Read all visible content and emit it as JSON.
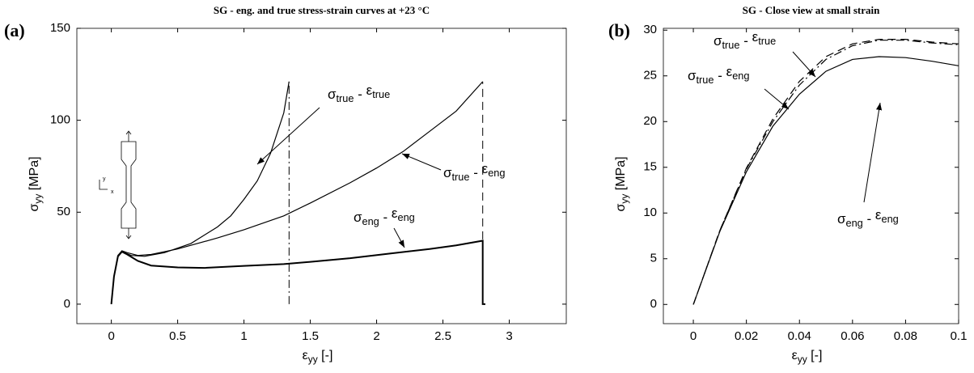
{
  "chart_data": [
    {
      "type": "line",
      "panel": "(a)",
      "title": "SG - eng. and true stress-strain curves at +23 °C",
      "x_label": "εyy [-]",
      "y_label": "σyy [MPa]",
      "xlim": [
        -0.26,
        3.43
      ],
      "ylim": [
        -10.6,
        150
      ],
      "xticks": [
        0,
        0.5,
        1,
        1.5,
        2,
        2.5,
        3
      ],
      "yticks": [
        0,
        50,
        100,
        150
      ],
      "series": [
        {
          "name": "σeng - εeng",
          "color": "#000000",
          "dash": "solid",
          "width": 2,
          "x": [
            0,
            0.02,
            0.05,
            0.08,
            0.12,
            0.2,
            0.3,
            0.5,
            0.7,
            1,
            1.3,
            1.5,
            1.8,
            2.1,
            2.4,
            2.6,
            2.8,
            2.8,
            2.82
          ],
          "values": [
            0,
            15,
            26,
            28.5,
            27,
            23.5,
            21,
            20,
            19.7,
            20.8,
            21.8,
            23,
            25,
            27.5,
            30,
            32,
            34.5,
            0,
            0
          ]
        },
        {
          "name": "σtrue - εeng",
          "color": "#000000",
          "dash": "solid",
          "width": 1.2,
          "x": [
            0,
            0.02,
            0.05,
            0.08,
            0.12,
            0.2,
            0.3,
            0.5,
            0.8,
            1,
            1.3,
            1.5,
            1.8,
            2,
            2.2,
            2.4,
            2.6,
            2.8
          ],
          "values": [
            0,
            15,
            26.5,
            29,
            28,
            26.5,
            27,
            30,
            36,
            40.5,
            48,
            55,
            66,
            74,
            83,
            94,
            105,
            121
          ]
        },
        {
          "name": "σtrue - εtrue",
          "color": "#000000",
          "dash": "solid",
          "width": 1.2,
          "x": [
            0,
            0.02,
            0.05,
            0.08,
            0.15,
            0.25,
            0.4,
            0.6,
            0.8,
            0.9,
            1,
            1.1,
            1.2,
            1.3,
            1.34
          ],
          "values": [
            0,
            15,
            26.5,
            28.5,
            26.5,
            26,
            28,
            33,
            42,
            48,
            57,
            67,
            82,
            104,
            121
          ]
        }
      ],
      "reference_lines": [
        {
          "x": 1.34,
          "y": [
            0,
            121
          ],
          "dash": "dashdot"
        },
        {
          "x": 2.8,
          "y": [
            0,
            121
          ],
          "dash": "dashed"
        }
      ]
    },
    {
      "type": "line",
      "panel": "(b)",
      "title": "SG - Close view at small strain",
      "x_label": "εyy [-]",
      "y_label": "σyy [MPa]",
      "xlim": [
        -0.0113,
        0.1
      ],
      "ylim": [
        -2.1,
        30.2
      ],
      "xticks": [
        0,
        0.02,
        0.04,
        0.06,
        0.08,
        0.1
      ],
      "yticks": [
        0,
        5,
        10,
        15,
        20,
        25,
        30
      ],
      "series": [
        {
          "name": "σeng - εeng",
          "color": "#000000",
          "dash": "solid",
          "width": 1.2,
          "x": [
            0,
            0.005,
            0.01,
            0.02,
            0.03,
            0.04,
            0.05,
            0.06,
            0.07,
            0.08,
            0.09,
            0.1
          ],
          "values": [
            0,
            4,
            8,
            14.5,
            19.5,
            23,
            25.5,
            26.8,
            27.1,
            27,
            26.6,
            26.1
          ]
        },
        {
          "name": "σtrue - εeng",
          "color": "#000000",
          "dash": "dashdot",
          "width": 1.2,
          "x": [
            0,
            0.01,
            0.02,
            0.03,
            0.04,
            0.05,
            0.06,
            0.07,
            0.08,
            0.09,
            0.1
          ],
          "values": [
            0,
            8.1,
            14.8,
            20,
            24,
            26.8,
            28.3,
            28.9,
            28.9,
            28.6,
            28.4
          ]
        },
        {
          "name": "σtrue - εtrue",
          "color": "#000000",
          "dash": "dashed",
          "width": 1.2,
          "x": [
            0,
            0.01,
            0.02,
            0.03,
            0.04,
            0.05,
            0.06,
            0.07,
            0.08,
            0.09,
            0.1
          ],
          "values": [
            0,
            8.1,
            14.9,
            20.3,
            24.4,
            27.1,
            28.5,
            29,
            29,
            28.7,
            28.5
          ]
        }
      ]
    }
  ]
}
